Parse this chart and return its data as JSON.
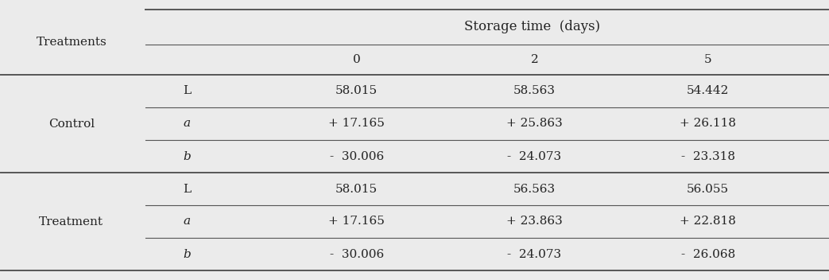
{
  "bg_color": "#ebebeb",
  "font_size": 11,
  "title_font_size": 12,
  "treatments_label": "Treatments",
  "storage_time_label": "Storage time  (days)",
  "day_labels": [
    "0",
    "2",
    "5"
  ],
  "group_labels": [
    "Control",
    "Treatment"
  ],
  "param_labels": [
    "L",
    "a",
    "b"
  ],
  "data": {
    "Control": {
      "L": [
        "58.015",
        "58.563",
        "54.442"
      ],
      "a": [
        "+ 17.165",
        "+ 25.863",
        "+ 26.118"
      ],
      "b": [
        "-  30.006",
        "-  24.073",
        "-  23.318"
      ]
    },
    "Treatment": {
      "L": [
        "58.015",
        "56.563",
        "56.055"
      ],
      "a": [
        "+ 17.165",
        "+ 23.863",
        "+ 22.818"
      ],
      "b": [
        "-  30.006",
        "-  24.073",
        "-  26.068"
      ]
    }
  }
}
